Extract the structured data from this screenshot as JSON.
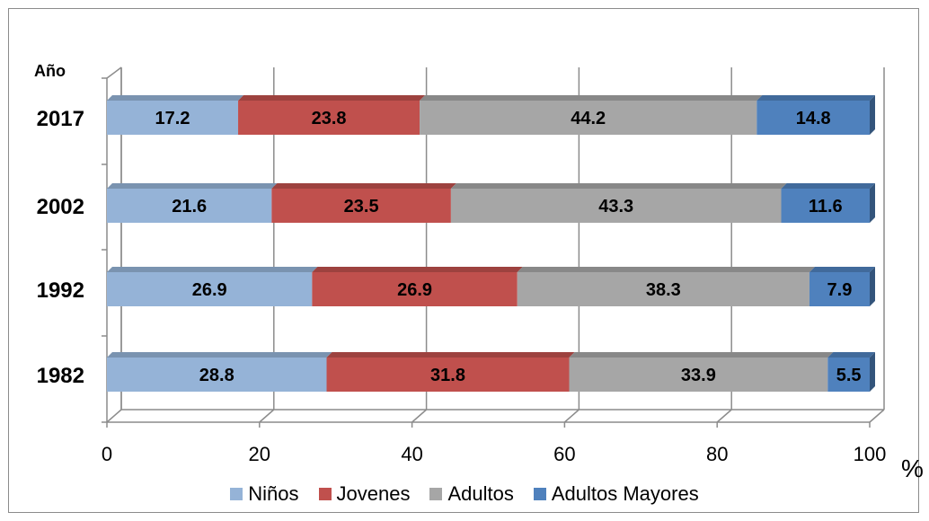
{
  "chart_data": {
    "type": "bar",
    "orientation": "horizontal",
    "stacked": true,
    "three_d": true,
    "y_axis_title": "Año",
    "x_unit_label": "%",
    "categories": [
      "1982",
      "1992",
      "2002",
      "2017"
    ],
    "series": [
      {
        "name": "Niños",
        "color": "#95b3d7",
        "values": [
          28.8,
          26.9,
          21.6,
          17.2
        ]
      },
      {
        "name": "Jovenes",
        "color": "#c0504d",
        "values": [
          31.8,
          26.9,
          23.5,
          23.8
        ]
      },
      {
        "name": "Adultos",
        "color": "#a6a6a6",
        "values": [
          33.9,
          38.3,
          43.3,
          44.2
        ]
      },
      {
        "name": "Adultos Mayores",
        "color": "#4f81bd",
        "values": [
          5.5,
          7.9,
          11.6,
          14.8
        ]
      }
    ],
    "xlim": [
      0,
      100
    ],
    "xticks": [
      "0",
      "20",
      "40",
      "60",
      "80",
      "100"
    ],
    "grid": true,
    "legend_position": "bottom"
  }
}
